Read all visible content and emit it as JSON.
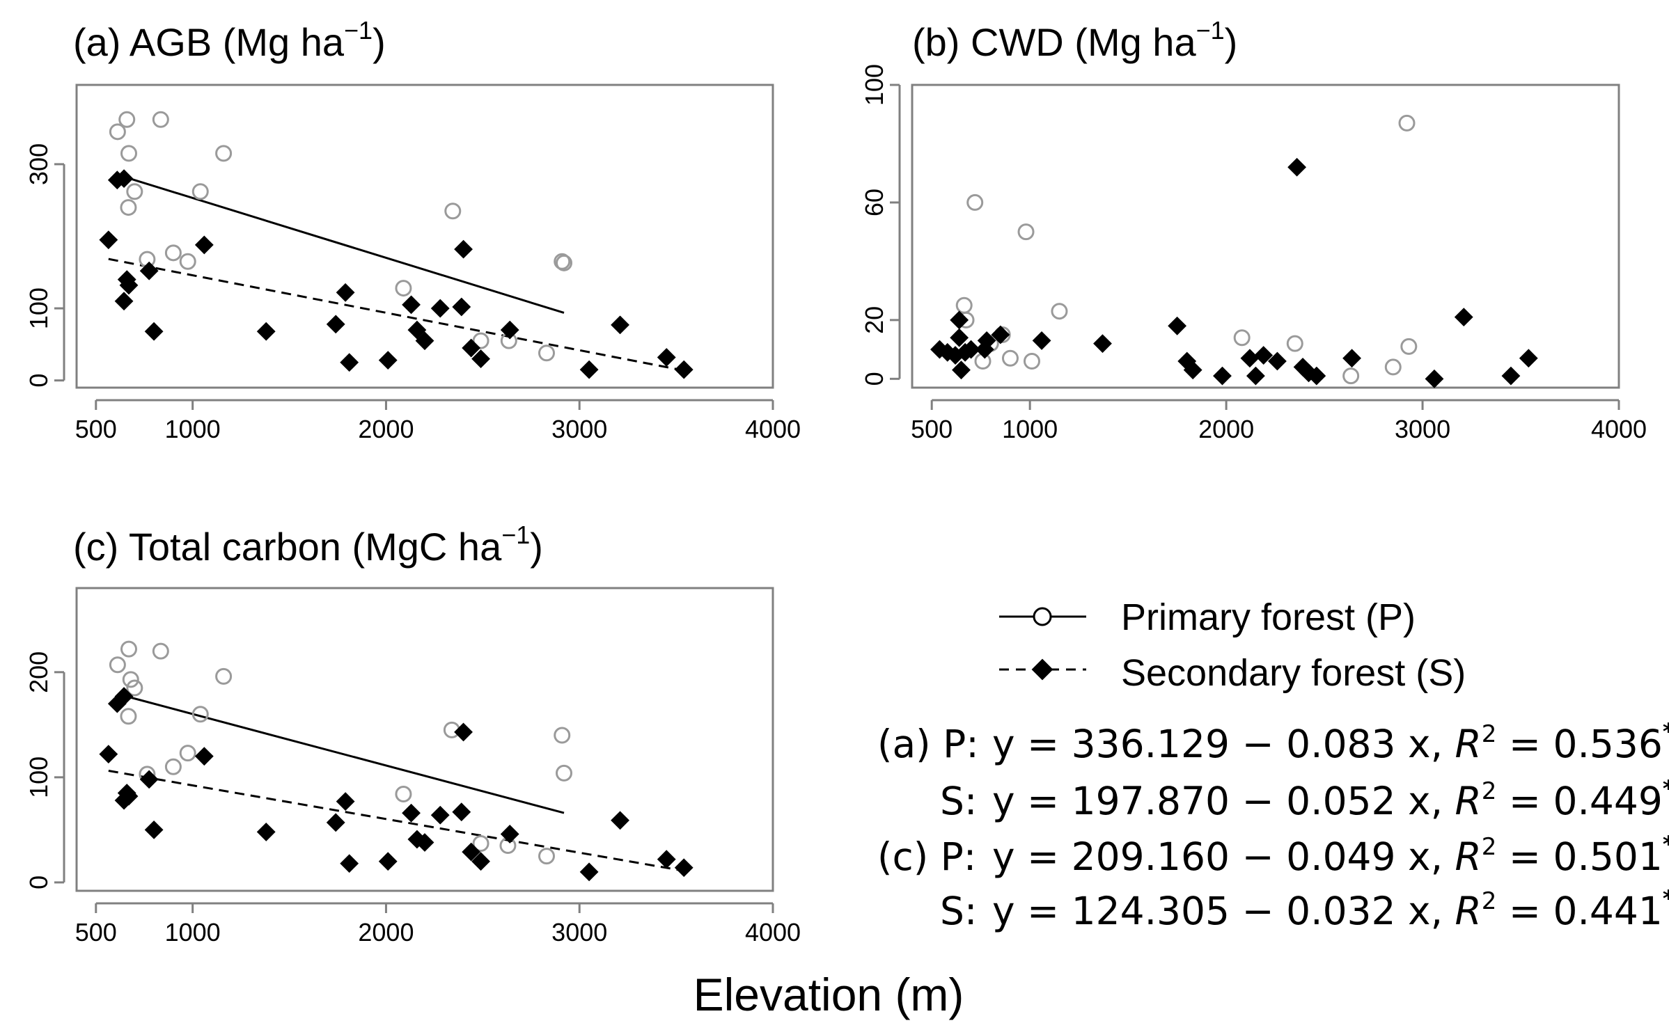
{
  "chart_data": [
    {
      "id": "a",
      "type": "scatter",
      "title": "(a)  AGB (Mg ha",
      "title_sup": "−1",
      "title_end": ")",
      "x_ticks": [
        500,
        1000,
        2000,
        3000,
        4000
      ],
      "x_ticklabels": [
        "500",
        "1000",
        "2000",
        "3000",
        "4000"
      ],
      "y_ticks": [
        0,
        100,
        300
      ],
      "y_ticklabels": [
        "0",
        "100",
        "300"
      ],
      "xlim": [
        400,
        4000
      ],
      "ylim": [
        -10,
        410
      ],
      "series": [
        {
          "name": "Primary forest (P)",
          "marker": "open-circle",
          "points": [
            [
              612,
              345
            ],
            [
              660,
              362
            ],
            [
              670,
              315
            ],
            [
              668,
              240
            ],
            [
              700,
              262
            ],
            [
              765,
              168
            ],
            [
              835,
              362
            ],
            [
              900,
              177
            ],
            [
              975,
              165
            ],
            [
              1040,
              262
            ],
            [
              1160,
              315
            ],
            [
              2090,
              128
            ],
            [
              2345,
              235
            ],
            [
              2490,
              55
            ],
            [
              2635,
              55
            ],
            [
              2830,
              38
            ],
            [
              2910,
              165
            ],
            [
              2920,
              163
            ]
          ],
          "fit": [
            [
              612,
              285.3
            ],
            [
              2920,
              93.8
            ]
          ]
        },
        {
          "name": "Secondary forest (S)",
          "marker": "filled-diamond",
          "points": [
            [
              565,
              195
            ],
            [
              610,
              278
            ],
            [
              645,
              280
            ],
            [
              645,
              110
            ],
            [
              660,
              140
            ],
            [
              670,
              132
            ],
            [
              775,
              152
            ],
            [
              800,
              68
            ],
            [
              1060,
              188
            ],
            [
              1380,
              68
            ],
            [
              1740,
              78
            ],
            [
              1790,
              122
            ],
            [
              1810,
              25
            ],
            [
              2010,
              28
            ],
            [
              2130,
              105
            ],
            [
              2160,
              70
            ],
            [
              2200,
              55
            ],
            [
              2280,
              100
            ],
            [
              2390,
              102
            ],
            [
              2400,
              182
            ],
            [
              2440,
              45
            ],
            [
              2490,
              30
            ],
            [
              2640,
              70
            ],
            [
              3050,
              15
            ],
            [
              3210,
              77
            ],
            [
              3450,
              32
            ],
            [
              3540,
              15
            ]
          ],
          "fit": [
            [
              565,
              168.5
            ],
            [
              3540,
              13.8
            ]
          ]
        }
      ]
    },
    {
      "id": "b",
      "type": "scatter",
      "title": "(b)  CWD (Mg ha",
      "title_sup": "−1",
      "title_end": ")",
      "x_ticks": [
        500,
        1000,
        2000,
        3000,
        4000
      ],
      "x_ticklabels": [
        "500",
        "1000",
        "2000",
        "3000",
        "4000"
      ],
      "y_ticks": [
        0,
        20,
        60,
        100
      ],
      "y_ticklabels": [
        "0",
        "20",
        "60",
        "100"
      ],
      "xlim": [
        400,
        4000
      ],
      "ylim": [
        -3,
        100
      ],
      "series": [
        {
          "name": "Primary forest (P)",
          "marker": "open-circle",
          "points": [
            [
              665,
              25
            ],
            [
              675,
              20
            ],
            [
              720,
              60
            ],
            [
              760,
              6
            ],
            [
              800,
              12
            ],
            [
              860,
              15
            ],
            [
              900,
              7
            ],
            [
              980,
              50
            ],
            [
              1010,
              6
            ],
            [
              1150,
              23
            ],
            [
              2080,
              14
            ],
            [
              2350,
              12
            ],
            [
              2635,
              1
            ],
            [
              2850,
              4
            ],
            [
              2920,
              87
            ],
            [
              2930,
              11
            ]
          ],
          "fit": []
        },
        {
          "name": "Secondary forest (S)",
          "marker": "filled-diamond",
          "points": [
            [
              540,
              10
            ],
            [
              580,
              9
            ],
            [
              620,
              8
            ],
            [
              640,
              20
            ],
            [
              640,
              14
            ],
            [
              650,
              3
            ],
            [
              670,
              9
            ],
            [
              700,
              10
            ],
            [
              770,
              10
            ],
            [
              780,
              13
            ],
            [
              850,
              15
            ],
            [
              1060,
              13
            ],
            [
              1370,
              12
            ],
            [
              1750,
              18
            ],
            [
              1800,
              6
            ],
            [
              1830,
              3
            ],
            [
              1980,
              1
            ],
            [
              2120,
              7
            ],
            [
              2150,
              1
            ],
            [
              2190,
              8
            ],
            [
              2260,
              6
            ],
            [
              2360,
              72
            ],
            [
              2390,
              4
            ],
            [
              2420,
              2
            ],
            [
              2460,
              1
            ],
            [
              2640,
              7
            ],
            [
              3060,
              0
            ],
            [
              3210,
              21
            ],
            [
              3450,
              1
            ],
            [
              3540,
              7
            ]
          ],
          "fit": []
        }
      ]
    },
    {
      "id": "c",
      "type": "scatter",
      "title": "(c)  Total carbon (MgC ha",
      "title_sup": "−1",
      "title_end": ")",
      "x_ticks": [
        500,
        1000,
        2000,
        3000,
        4000
      ],
      "x_ticklabels": [
        "500",
        "1000",
        "2000",
        "3000",
        "4000"
      ],
      "y_ticks": [
        0,
        100,
        200
      ],
      "y_ticklabels": [
        "0",
        "100",
        "200"
      ],
      "xlim": [
        400,
        4000
      ],
      "ylim": [
        -8,
        280
      ],
      "series": [
        {
          "name": "Primary forest (P)",
          "marker": "open-circle",
          "points": [
            [
              612,
              207
            ],
            [
              670,
              222
            ],
            [
              680,
              193
            ],
            [
              668,
              158
            ],
            [
              700,
              185
            ],
            [
              765,
              103
            ],
            [
              835,
              220
            ],
            [
              900,
              110
            ],
            [
              975,
              123
            ],
            [
              1040,
              160
            ],
            [
              1160,
              196
            ],
            [
              2090,
              84
            ],
            [
              2340,
              145
            ],
            [
              2490,
              37
            ],
            [
              2630,
              35
            ],
            [
              2830,
              25
            ],
            [
              2910,
              140
            ],
            [
              2920,
              104
            ]
          ],
          "fit": [
            [
              612,
              179.2
            ],
            [
              2920,
              66.1
            ]
          ]
        },
        {
          "name": "Secondary forest (S)",
          "marker": "filled-diamond",
          "points": [
            [
              565,
              122
            ],
            [
              610,
              170
            ],
            [
              645,
              177
            ],
            [
              645,
              78
            ],
            [
              660,
              85
            ],
            [
              670,
              82
            ],
            [
              775,
              98
            ],
            [
              800,
              50
            ],
            [
              1060,
              120
            ],
            [
              1380,
              48
            ],
            [
              1740,
              57
            ],
            [
              1790,
              77
            ],
            [
              1810,
              18
            ],
            [
              2010,
              20
            ],
            [
              2130,
              66
            ],
            [
              2160,
              41
            ],
            [
              2200,
              38
            ],
            [
              2280,
              64
            ],
            [
              2390,
              67
            ],
            [
              2400,
              143
            ],
            [
              2440,
              29
            ],
            [
              2490,
              20
            ],
            [
              2640,
              46
            ],
            [
              3050,
              10
            ],
            [
              3210,
              59
            ],
            [
              3450,
              22
            ],
            [
              3540,
              14
            ]
          ],
          "fit": [
            [
              565,
              106.2
            ],
            [
              3540,
              11.0
            ]
          ]
        }
      ]
    }
  ],
  "legend": {
    "primary": "Primary forest (P)",
    "secondary": "Secondary forest (S)"
  },
  "equations": [
    {
      "prefix": "(a) P:",
      "body": "y = 336.129 − 0.083 x, ",
      "rvar": "R",
      "rexp": "2",
      "rval": " = 0.536",
      "sig": "***"
    },
    {
      "prefix": "S:",
      "body": "y = 197.870 − 0.052 x, ",
      "rvar": "R",
      "rexp": "2",
      "rval": " = 0.449",
      "sig": "***"
    },
    {
      "prefix": "(c) P:",
      "body": "y = 209.160 − 0.049 x, ",
      "rvar": "R",
      "rexp": "2",
      "rval": " = 0.501",
      "sig": "**"
    },
    {
      "prefix": "S:",
      "body": "y = 124.305 − 0.032 x, ",
      "rvar": "R",
      "rexp": "2",
      "rval": " = 0.441",
      "sig": "***"
    }
  ],
  "xlabel": "Elevation (m)"
}
